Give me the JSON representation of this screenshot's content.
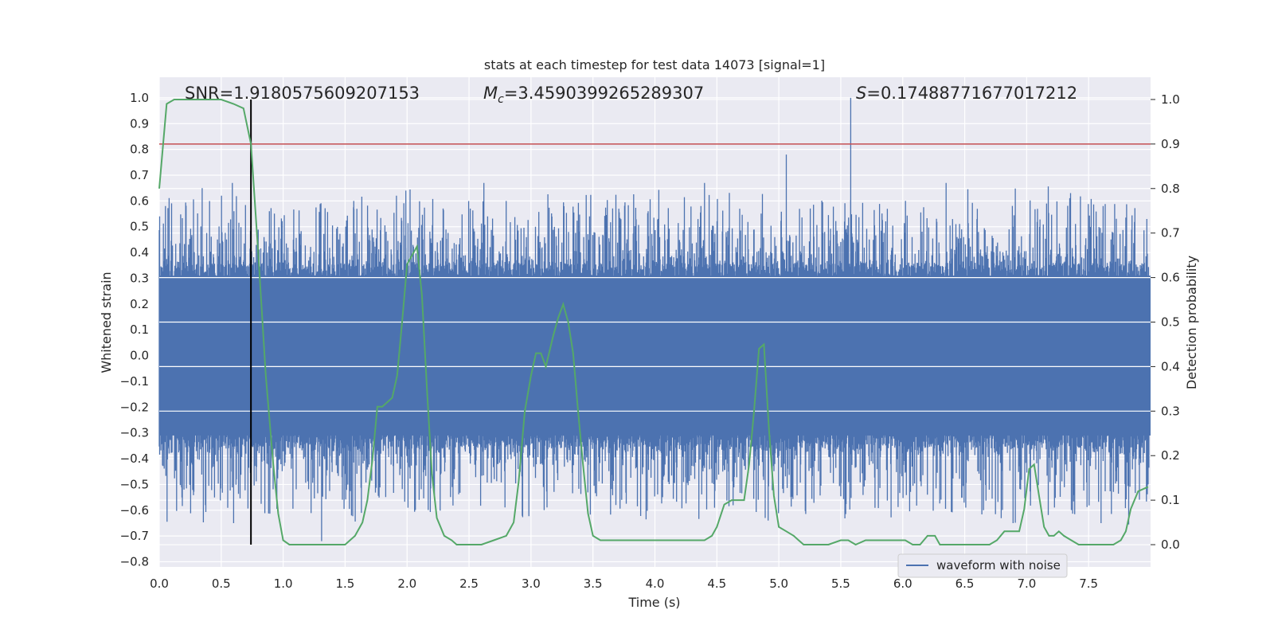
{
  "chart_data": {
    "type": "line",
    "title": "stats at each timestep for test data 14073 [signal=1]",
    "xlabel": "Time (s)",
    "ylabel": "Whitened strain",
    "y2label": "Detection probability",
    "xlim": [
      0,
      8
    ],
    "ylim": [
      -0.82,
      1.08
    ],
    "y2lim": [
      -0.05,
      1.05
    ],
    "xticks": [
      "0.0",
      "0.5",
      "1.0",
      "1.5",
      "2.0",
      "2.5",
      "3.0",
      "3.5",
      "4.0",
      "4.5",
      "5.0",
      "5.5",
      "6.0",
      "6.5",
      "7.0",
      "7.5"
    ],
    "yticks": [
      "1.0",
      "0.9",
      "0.8",
      "0.7",
      "0.6",
      "0.5",
      "0.4",
      "0.3",
      "0.2",
      "0.1",
      "0.0",
      "−0.1",
      "−0.2",
      "−0.3",
      "−0.4",
      "−0.5",
      "−0.6",
      "−0.7",
      "−0.8"
    ],
    "y2ticks": [
      "1.0",
      "0.9",
      "0.8",
      "0.7",
      "0.6",
      "0.5",
      "0.4",
      "0.3",
      "0.2",
      "0.1",
      "0.0"
    ],
    "annotations": {
      "snr": "SNR=1.9180575609207153",
      "mc": "M",
      "mc_sub": "c",
      "mc_value": "=3.4590399265289307",
      "s": "S",
      "s_value": "=0.17488771677017212"
    },
    "threshold_y2": 0.9,
    "marker_x": 0.74,
    "grid": true,
    "legend_position": "lower-right",
    "legend": [
      "waveform with noise"
    ],
    "colors": {
      "waveform": "#4c72b0",
      "probability": "#55a868",
      "threshold": "#c44e52",
      "marker": "#000000",
      "background": "#eaeaf2",
      "grid": "#ffffff"
    },
    "series": [
      {
        "name": "waveform with noise",
        "axis": "left",
        "description_of_spikes": "dense noise band roughly between -0.35 and 0.35 with spikes",
        "spikes": [
          {
            "x": 0.05,
            "y": 0.58
          },
          {
            "x": 0.2,
            "y": -0.52
          },
          {
            "x": 0.59,
            "y": 0.67
          },
          {
            "x": 0.6,
            "y": -0.65
          },
          {
            "x": 1.31,
            "y": -0.72
          },
          {
            "x": 1.57,
            "y": 0.6
          },
          {
            "x": 1.99,
            "y": 0.64
          },
          {
            "x": 2.62,
            "y": 0.67
          },
          {
            "x": 4.4,
            "y": 0.67
          },
          {
            "x": 4.89,
            "y": -0.63
          },
          {
            "x": 5.06,
            "y": 0.78
          },
          {
            "x": 5.58,
            "y": 1.0
          },
          {
            "x": 6.35,
            "y": 0.67
          },
          {
            "x": 6.89,
            "y": -0.65
          },
          {
            "x": 7.6,
            "y": -0.65
          },
          {
            "x": 7.97,
            "y": 0.53
          }
        ]
      },
      {
        "name": "",
        "axis": "right",
        "x": [
          0.0,
          0.06,
          0.12,
          0.2,
          0.3,
          0.4,
          0.5,
          0.6,
          0.68,
          0.74,
          0.8,
          0.86,
          0.92,
          0.96,
          1.0,
          1.05,
          1.1,
          1.2,
          1.3,
          1.4,
          1.5,
          1.58,
          1.64,
          1.68,
          1.72,
          1.76,
          1.8,
          1.84,
          1.88,
          1.92,
          1.96,
          2.0,
          2.04,
          2.08,
          2.12,
          2.16,
          2.2,
          2.24,
          2.3,
          2.36,
          2.4,
          2.5,
          2.6,
          2.7,
          2.8,
          2.86,
          2.9,
          2.95,
          3.0,
          3.04,
          3.08,
          3.12,
          3.18,
          3.22,
          3.26,
          3.3,
          3.34,
          3.38,
          3.42,
          3.46,
          3.5,
          3.56,
          3.6,
          3.7,
          3.8,
          3.9,
          4.0,
          4.1,
          4.2,
          4.3,
          4.4,
          4.46,
          4.5,
          4.56,
          4.62,
          4.68,
          4.72,
          4.76,
          4.8,
          4.84,
          4.88,
          4.92,
          4.96,
          5.0,
          5.06,
          5.12,
          5.16,
          5.2,
          5.26,
          5.32,
          5.4,
          5.5,
          5.56,
          5.62,
          5.7,
          5.8,
          5.9,
          5.96,
          6.02,
          6.08,
          6.14,
          6.2,
          6.26,
          6.3,
          6.36,
          6.44,
          6.52,
          6.6,
          6.7,
          6.76,
          6.82,
          6.88,
          6.94,
          6.98,
          7.02,
          7.06,
          7.1,
          7.14,
          7.18,
          7.22,
          7.26,
          7.3,
          7.36,
          7.42,
          7.5,
          7.6,
          7.7,
          7.76,
          7.8,
          7.84,
          7.9,
          7.98
        ],
        "y": [
          0.8,
          0.99,
          1.0,
          1.0,
          1.0,
          1.0,
          1.0,
          0.99,
          0.98,
          0.9,
          0.65,
          0.38,
          0.18,
          0.07,
          0.01,
          0.0,
          0.0,
          0.0,
          -0.0,
          0.0,
          0.0,
          0.02,
          0.05,
          0.1,
          0.19,
          0.31,
          0.31,
          0.32,
          0.33,
          0.38,
          0.5,
          0.63,
          0.65,
          0.67,
          0.56,
          0.35,
          0.16,
          0.06,
          0.02,
          0.01,
          0.0,
          0.0,
          0.0,
          0.01,
          0.02,
          0.05,
          0.14,
          0.3,
          0.38,
          0.43,
          0.43,
          0.4,
          0.47,
          0.51,
          0.54,
          0.5,
          0.43,
          0.3,
          0.18,
          0.07,
          0.02,
          0.01,
          0.01,
          0.01,
          0.01,
          0.01,
          0.01,
          0.01,
          0.01,
          0.01,
          0.01,
          0.02,
          0.04,
          0.09,
          0.1,
          0.1,
          0.1,
          0.18,
          0.3,
          0.44,
          0.45,
          0.26,
          0.11,
          0.04,
          0.03,
          0.02,
          0.01,
          0.0,
          0.0,
          0.0,
          0.0,
          0.01,
          0.01,
          0.0,
          0.01,
          0.01,
          0.01,
          0.01,
          0.01,
          0.0,
          0.0,
          0.02,
          0.02,
          0.0,
          0.0,
          0.0,
          0.0,
          0.0,
          0.0,
          0.01,
          0.03,
          0.03,
          0.03,
          0.08,
          0.17,
          0.18,
          0.11,
          0.04,
          0.02,
          0.02,
          0.03,
          0.02,
          0.01,
          0.0,
          0.0,
          0.0,
          0.0,
          0.01,
          0.03,
          0.08,
          0.12,
          0.13
        ]
      }
    ]
  }
}
